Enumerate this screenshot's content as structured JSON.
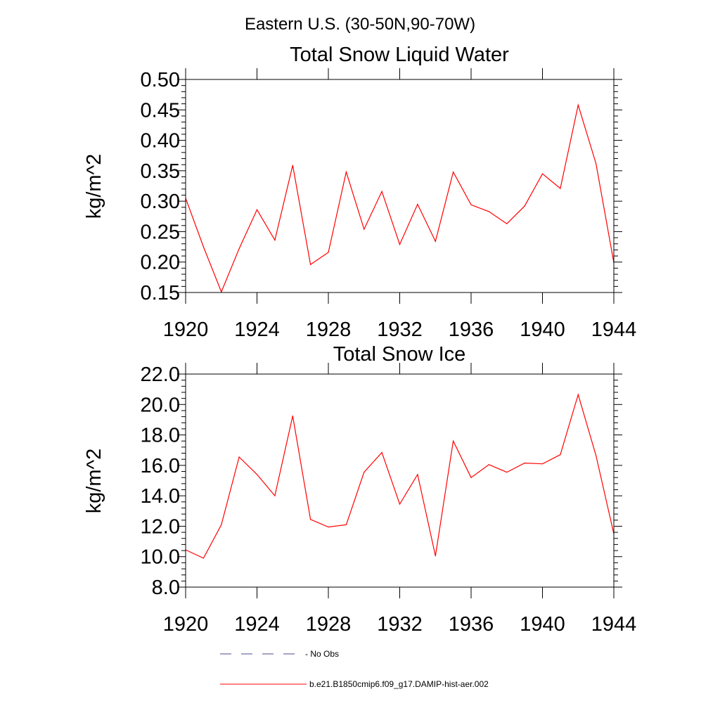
{
  "figure": {
    "supertitle": "Eastern U.S. (30-50N,90-70W)"
  },
  "chart_data": [
    {
      "type": "line",
      "title": "Total Snow Liquid Water",
      "xlabel": "",
      "ylabel": "kg/m^2",
      "xlim": [
        1920,
        1944
      ],
      "ylim": [
        0.15,
        0.5
      ],
      "grid": false,
      "x_ticks": [
        "1920",
        "1924",
        "1928",
        "1932",
        "1936",
        "1940",
        "1944"
      ],
      "y_ticks": [
        "0.15",
        "0.20",
        "0.25",
        "0.30",
        "0.35",
        "0.40",
        "0.45",
        "0.50"
      ],
      "x": [
        1920,
        1921,
        1922,
        1923,
        1924,
        1925,
        1926,
        1927,
        1928,
        1929,
        1930,
        1931,
        1932,
        1933,
        1934,
        1935,
        1936,
        1937,
        1938,
        1939,
        1940,
        1941,
        1942,
        1943,
        1944
      ],
      "series": [
        {
          "name": "b.e21.B1850cmip6.f09_g17.DAMIP-hist-aer.002",
          "color": "#ff0000",
          "values": [
            0.305,
            0.225,
            0.151,
            0.222,
            0.286,
            0.236,
            0.359,
            0.196,
            0.216,
            0.348,
            0.254,
            0.316,
            0.229,
            0.295,
            0.234,
            0.348,
            0.294,
            0.283,
            0.263,
            0.292,
            0.345,
            0.321,
            0.458,
            0.362,
            0.199
          ]
        }
      ]
    },
    {
      "type": "line",
      "title": "Total Snow Ice",
      "xlabel": "",
      "ylabel": "kg/m^2",
      "xlim": [
        1920,
        1944
      ],
      "ylim": [
        8.0,
        22.0
      ],
      "grid": false,
      "x_ticks": [
        "1920",
        "1924",
        "1928",
        "1932",
        "1936",
        "1940",
        "1944"
      ],
      "y_ticks": [
        "8.0",
        "10.0",
        "12.0",
        "14.0",
        "16.0",
        "18.0",
        "20.0",
        "22.0"
      ],
      "x": [
        1920,
        1921,
        1922,
        1923,
        1924,
        1925,
        1926,
        1927,
        1928,
        1929,
        1930,
        1931,
        1932,
        1933,
        1934,
        1935,
        1936,
        1937,
        1938,
        1939,
        1940,
        1941,
        1942,
        1943,
        1944
      ],
      "series": [
        {
          "name": "b.e21.B1850cmip6.f09_g17.DAMIP-hist-aer.002",
          "color": "#ff0000",
          "values": [
            10.45,
            9.9,
            12.1,
            16.55,
            15.4,
            14.0,
            19.25,
            12.45,
            11.95,
            12.1,
            15.55,
            16.85,
            13.45,
            15.4,
            10.05,
            17.6,
            15.2,
            16.05,
            15.55,
            16.15,
            16.1,
            16.7,
            20.65,
            16.65,
            11.5
          ]
        }
      ]
    }
  ],
  "legend": {
    "placement": "bottom",
    "items": [
      {
        "label": "No Obs",
        "color": "#4a4a8c",
        "style": "dashed"
      },
      {
        "label": "b.e21.B1850cmip6.f09_g17.DAMIP-hist-aer.002",
        "color": "#ff0000",
        "style": "solid"
      }
    ]
  }
}
